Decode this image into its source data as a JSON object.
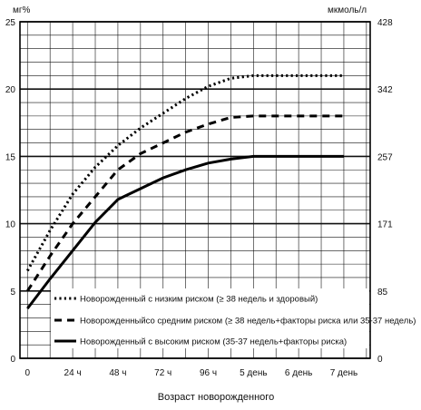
{
  "chart_data": {
    "type": "line",
    "y_unit_left": "мг%",
    "y_unit_right": "мкмоль/л",
    "xlabel": "Возраст новорожденного",
    "x_ticks": [
      "0",
      "24 ч",
      "48 ч",
      "72 ч",
      "96 ч",
      "5 день",
      "6 день",
      "7 день"
    ],
    "x_positions": [
      0,
      24,
      48,
      72,
      96,
      120,
      144,
      168
    ],
    "xlim": [
      -4,
      182
    ],
    "ylim": [
      0,
      25
    ],
    "y_ticks_left": [
      "0",
      "5",
      "10",
      "15",
      "20",
      "25"
    ],
    "y_ticks_right": [
      {
        "label": "0",
        "value": 0
      },
      {
        "label": "85",
        "value": 5
      },
      {
        "label": "171",
        "value": 10
      },
      {
        "label": "257",
        "value": 15
      },
      {
        "label": "342",
        "value": 20
      },
      {
        "label": "428",
        "value": 25
      }
    ],
    "grid": "on",
    "legend_position": "bottom",
    "series": [
      {
        "name": "Новорожденный с низким риском (≥ 38 недель и здоровый)",
        "style": "dotted",
        "x": [
          0,
          12,
          24,
          36,
          48,
          60,
          72,
          84,
          96,
          108,
          120,
          132,
          144,
          156,
          168
        ],
        "y": [
          6.5,
          9.5,
          12.2,
          14.2,
          15.8,
          17.1,
          18.2,
          19.3,
          20.2,
          20.8,
          21.0,
          21.0,
          21.0,
          21.0,
          21.0
        ]
      },
      {
        "name": "Новорожденныйсо средним риском (≥ 38 недель+факторы риска или 35-37 недель)",
        "style": "dashed",
        "x": [
          0,
          12,
          24,
          36,
          48,
          60,
          72,
          84,
          96,
          108,
          120,
          132,
          144,
          156,
          168
        ],
        "y": [
          5.0,
          7.6,
          10.0,
          12.0,
          14.0,
          15.2,
          16.0,
          16.8,
          17.4,
          17.9,
          18.0,
          18.0,
          18.0,
          18.0,
          18.0
        ]
      },
      {
        "name": "Новорожденный с высоким риском (35-37 недель+факторы риска)",
        "style": "solid",
        "x": [
          0,
          12,
          24,
          36,
          48,
          60,
          72,
          84,
          96,
          108,
          120,
          132,
          144,
          156,
          168
        ],
        "y": [
          3.7,
          5.9,
          8.0,
          10.1,
          11.8,
          12.6,
          13.4,
          14.0,
          14.5,
          14.8,
          15.0,
          15.0,
          15.0,
          15.0,
          15.0
        ]
      }
    ]
  }
}
